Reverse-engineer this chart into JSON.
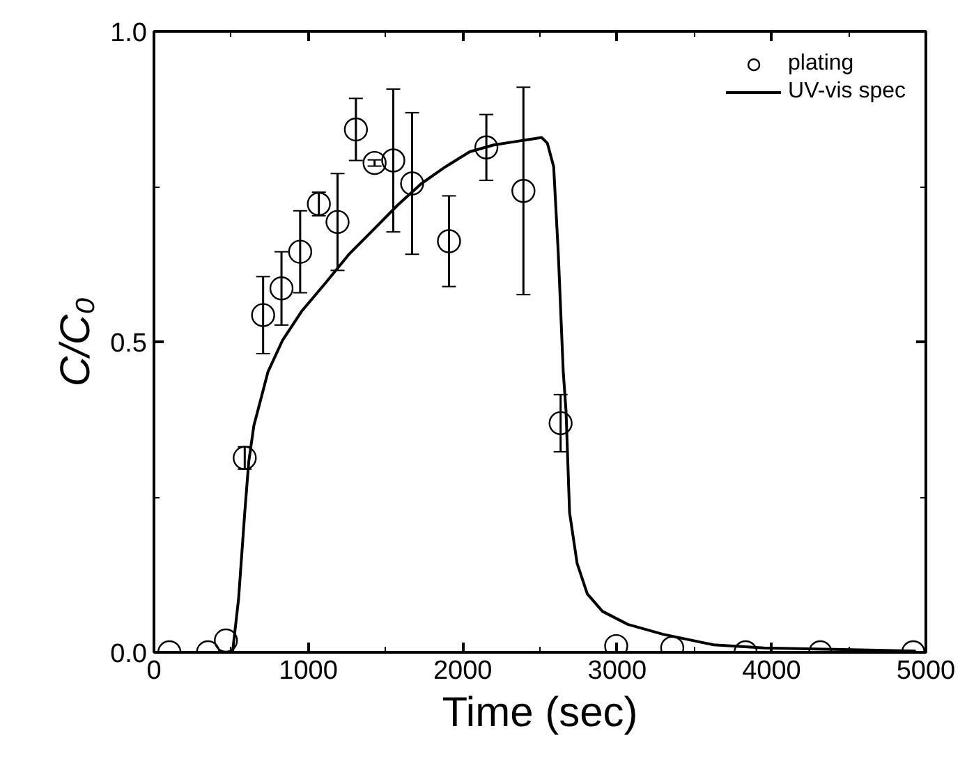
{
  "chart_data": {
    "type": "scatter",
    "xlabel": "Time (sec)",
    "ylabel": "C/C₀",
    "xlim": [
      0,
      5000
    ],
    "xticks": [
      0,
      1000,
      2000,
      3000,
      4000,
      5000
    ],
    "ylim": [
      0,
      1.0
    ],
    "yticks": [
      {
        "value": 0,
        "label": "0.0"
      },
      {
        "value": 0.5,
        "label": "0.5"
      },
      {
        "value": 1.0,
        "label": "1.0"
      }
    ],
    "grid": false,
    "legend": "top right",
    "series": [
      {
        "name": "plating",
        "marker": "circle",
        "color": "#000000",
        "x": [
          100,
          350,
          466,
          588,
          707,
          826,
          947,
          1068,
          1189,
          1308,
          1429,
          1550,
          1672,
          1911,
          2153,
          2393,
          2634,
          2994,
          3357,
          3832,
          4316,
          4918
        ],
        "values": [
          0,
          0,
          0.019,
          0.313,
          0.543,
          0.586,
          0.645,
          0.722,
          0.693,
          0.842,
          0.788,
          0.792,
          0.755,
          0.662,
          0.813,
          0.743,
          0.369,
          0.01,
          0.007,
          0,
          0,
          0
        ],
        "errors": [
          null,
          null,
          null,
          0.018,
          0.062,
          0.059,
          0.066,
          0.019,
          0.078,
          0.05,
          0.005,
          0.115,
          0.114,
          0.073,
          0.053,
          0.167,
          0.046,
          null,
          null,
          null,
          null,
          null
        ]
      },
      {
        "name": "UV-vis spec",
        "type": "line",
        "color": "#000000",
        "line_style": "solid",
        "x": [
          0,
          480,
          509,
          548,
          588,
          614,
          647,
          739,
          832,
          956,
          1112,
          1267,
          1423,
          1578,
          1733,
          1889,
          2045,
          2200,
          2355,
          2511,
          2548,
          2589,
          2619,
          2651,
          2669,
          2692,
          2741,
          2807,
          2905,
          3069,
          3298,
          3625,
          3953,
          4935
        ],
        "values": [
          0,
          0,
          0.0,
          0.086,
          0.225,
          0.307,
          0.365,
          0.452,
          0.502,
          0.549,
          0.595,
          0.642,
          0.681,
          0.72,
          0.755,
          0.782,
          0.806,
          0.817,
          0.823,
          0.829,
          0.82,
          0.782,
          0.642,
          0.452,
          0.389,
          0.225,
          0.143,
          0.094,
          0.066,
          0.045,
          0.029,
          0.012,
          0.007,
          0.002
        ]
      }
    ]
  }
}
